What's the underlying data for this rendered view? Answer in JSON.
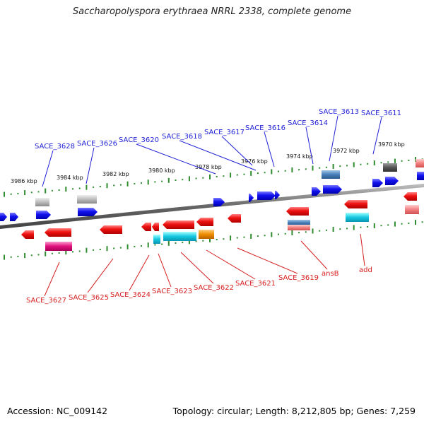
{
  "title": "Saccharopolyspora erythraea NRRL 2338, complete genome",
  "footer": {
    "accession": "Accession: NC_009142",
    "topology": "Topology: circular; Length: 8,212,805 bp; Genes: 7,259"
  },
  "colors": {
    "forward_label": "#1f1fd6",
    "reverse_label": "#d61f1f",
    "tick": "#2e8b2e",
    "backbone": "#777777"
  },
  "ticks": [
    "3970 kbp",
    "3972 kbp",
    "3974 kbp",
    "3976 kbp",
    "3978 kbp",
    "3980 kbp",
    "3982 kbp",
    "3984 kbp",
    "3986 kbp"
  ],
  "forward_labels": [
    "SACE_3611",
    "SACE_3613",
    "SACE_3614",
    "SACE_3616",
    "SACE_3617",
    "SACE_3618",
    "SACE_3620",
    "SACE_3626",
    "SACE_3628"
  ],
  "reverse_labels": [
    "SACE_3627",
    "SACE_3625",
    "SACE_3624",
    "SACE_3623",
    "SACE_3622",
    "SACE_3621",
    "SACE_3619",
    "ansB",
    "add"
  ]
}
